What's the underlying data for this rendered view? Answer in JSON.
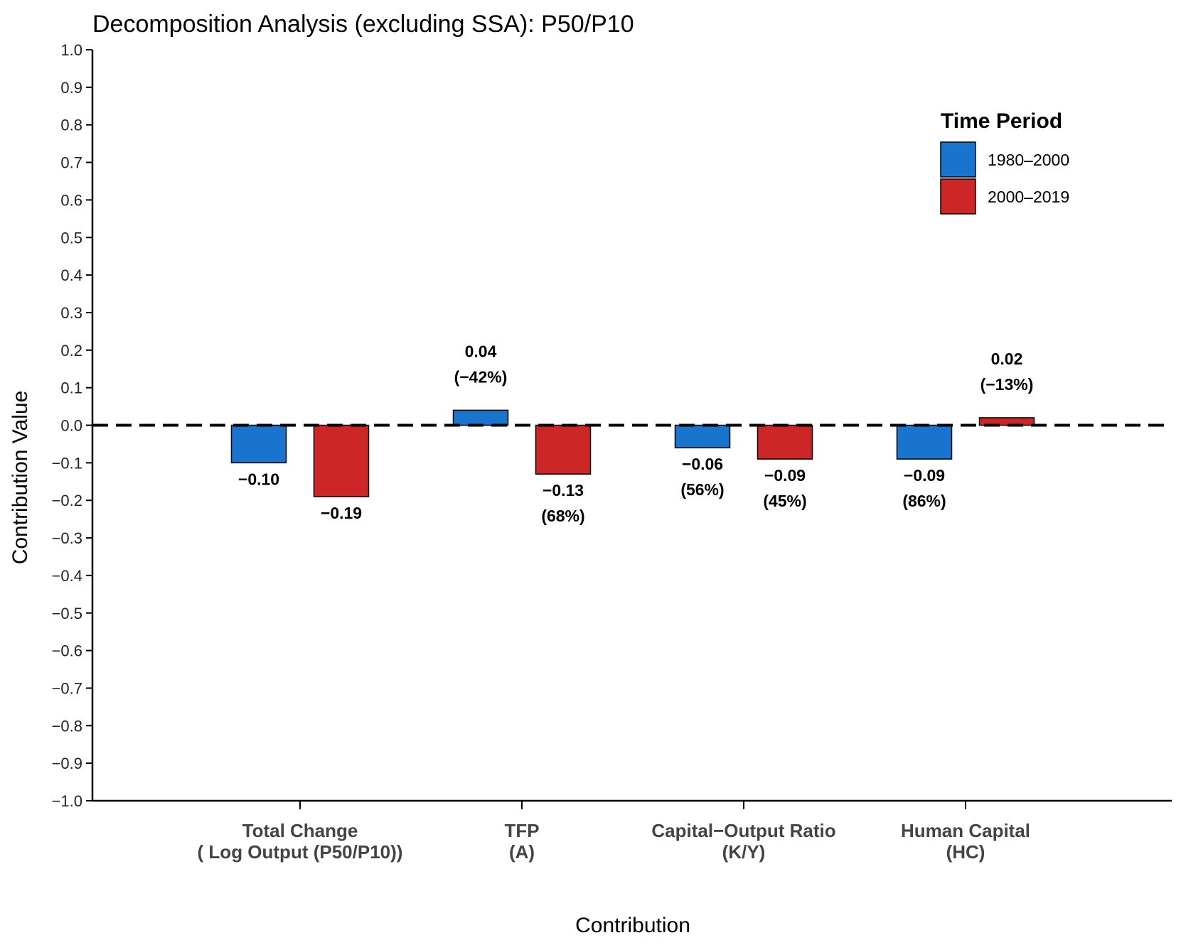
{
  "chart_data": {
    "type": "bar",
    "title": "Decomposition Analysis (excluding SSA): P50/P10",
    "xlabel": "Contribution",
    "ylabel": "Contribution Value",
    "ylim": [
      -1.0,
      1.0
    ],
    "yticks": [
      "1.0",
      "0.9",
      "0.8",
      "0.7",
      "0.6",
      "0.5",
      "0.4",
      "0.3",
      "0.2",
      "0.1",
      "0.0",
      "−0.1",
      "−0.2",
      "−0.3",
      "−0.4",
      "−0.5",
      "−0.6",
      "−0.7",
      "−0.8",
      "−0.9",
      "−1.0"
    ],
    "categories": [
      {
        "line1": "Total Change",
        "line2": "( Log Output (P50/P10))"
      },
      {
        "line1": "TFP",
        "line2": "(A)"
      },
      {
        "line1": "Capital−Output Ratio",
        "line2": "(K/Y)"
      },
      {
        "line1": "Human Capital",
        "line2": "(HC)"
      }
    ],
    "series": [
      {
        "name": "1980–2000",
        "color": "#1874cd",
        "values": [
          -0.1,
          0.04,
          -0.06,
          -0.09
        ],
        "labels": [
          "−0.10",
          "0.04",
          "−0.06",
          "−0.09"
        ],
        "pct_labels": [
          "",
          "(−42%)",
          "(56%)",
          "(86%)"
        ]
      },
      {
        "name": "2000–2019",
        "color": "#cd2626",
        "values": [
          -0.19,
          -0.13,
          -0.09,
          0.02
        ],
        "labels": [
          "−0.19",
          "−0.13",
          "−0.09",
          "0.02"
        ],
        "pct_labels": [
          "",
          "(68%)",
          "(45%)",
          "(−13%)"
        ]
      }
    ],
    "reference_line": 0.0,
    "legend": {
      "title": "Time Period",
      "position": "top-right"
    }
  }
}
